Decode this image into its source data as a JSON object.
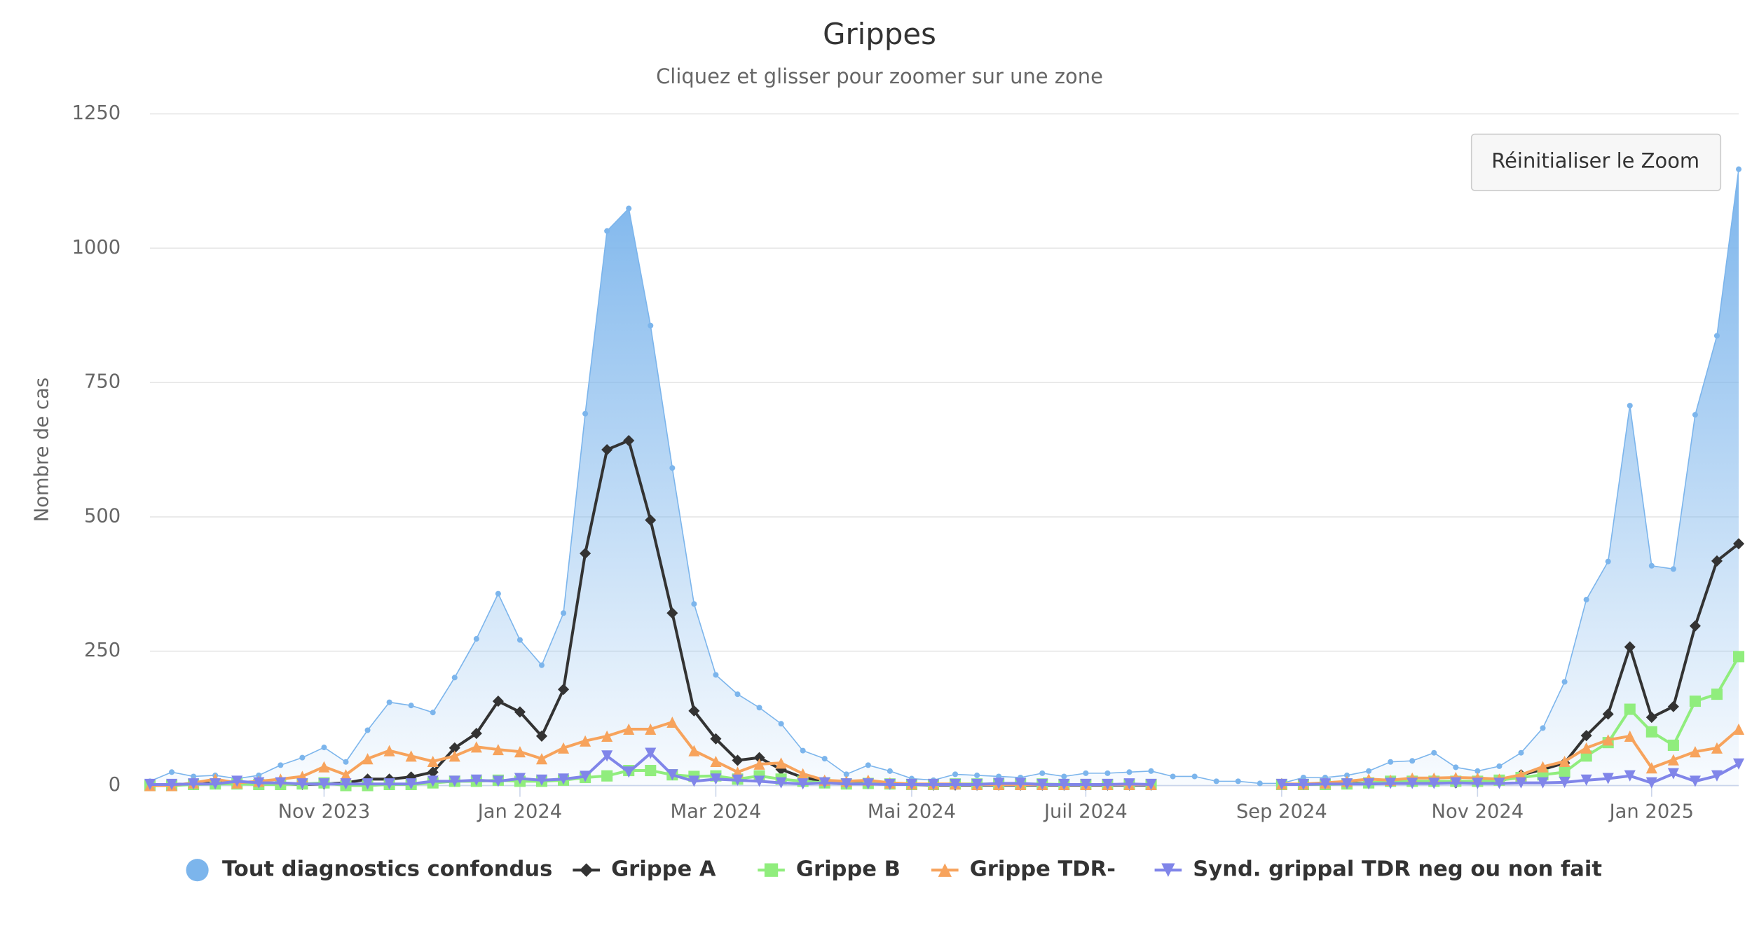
{
  "chart_data": {
    "type": "line",
    "title": "Grippes",
    "subtitle": "Cliquez et glisser pour zoomer sur une zone",
    "y_label": "Nombre de cas",
    "button": "Réinitialiser le Zoom",
    "categories": [
      null,
      null,
      null,
      null,
      null,
      null,
      null,
      null,
      "Nov 2023",
      null,
      null,
      null,
      null,
      null,
      null,
      null,
      null,
      "Jan 2024",
      null,
      null,
      null,
      null,
      null,
      null,
      null,
      null,
      "Mar 2024",
      null,
      null,
      null,
      null,
      null,
      null,
      null,
      null,
      "Mai 2024",
      null,
      null,
      null,
      null,
      null,
      null,
      null,
      "Juil 2024",
      null,
      null,
      null,
      null,
      null,
      null,
      null,
      null,
      "Sep 2024",
      null,
      null,
      null,
      null,
      null,
      null,
      null,
      null,
      "Nov 2024",
      null,
      null,
      null,
      null,
      null,
      null,
      null,
      "Jan 2025",
      null,
      null,
      null,
      null
    ],
    "ylim": [
      0,
      1250
    ],
    "yticks": [
      0,
      250,
      500,
      750,
      1000,
      1250
    ],
    "grid": true,
    "series": [
      {
        "name": "Tout diagnostics confondus",
        "color": "#7cb5ec",
        "marker": "circle",
        "area": true,
        "values": [
          8,
          25,
          17,
          19,
          13,
          19,
          38,
          52,
          71,
          44,
          103,
          155,
          149,
          136,
          201,
          273,
          357,
          271,
          224,
          321,
          692,
          1032,
          1074,
          856,
          591,
          338,
          206,
          170,
          145,
          115,
          65,
          50,
          21,
          38,
          27,
          13,
          10,
          21,
          19,
          17,
          15,
          23,
          17,
          23,
          23,
          25,
          27,
          17,
          17,
          8,
          8,
          4,
          4,
          15,
          15,
          19,
          27,
          44,
          46,
          61,
          34,
          27,
          36,
          61,
          107,
          193,
          346,
          417,
          707,
          409,
          403,
          690,
          837,
          1147
        ]
      },
      {
        "name": "Grippe A",
        "color": "#333333",
        "marker": "diamond",
        "values": [
          2,
          2,
          3,
          5,
          5,
          3,
          3,
          2,
          3,
          5,
          12,
          12,
          16,
          25,
          70,
          97,
          157,
          137,
          92,
          179,
          432,
          625,
          642,
          494,
          321,
          139,
          87,
          47,
          52,
          30,
          15,
          8,
          4,
          6,
          3,
          2,
          1,
          1,
          1,
          1,
          1,
          1,
          1,
          1,
          1,
          1,
          1,
          null,
          null,
          null,
          null,
          null,
          3,
          2,
          3,
          4,
          5,
          6,
          8,
          8,
          5,
          6,
          8,
          20,
          30,
          42,
          93,
          133,
          258,
          127,
          147,
          297,
          418,
          450
        ]
      },
      {
        "name": "Grippe B",
        "color": "#90ed7d",
        "marker": "square",
        "values": [
          0,
          0,
          2,
          3,
          3,
          2,
          2,
          3,
          5,
          0,
          0,
          2,
          2,
          5,
          8,
          8,
          10,
          8,
          8,
          10,
          15,
          18,
          28,
          28,
          20,
          17,
          18,
          12,
          18,
          12,
          8,
          5,
          3,
          4,
          3,
          2,
          2,
          3,
          3,
          3,
          3,
          3,
          2,
          2,
          2,
          2,
          2,
          null,
          null,
          null,
          null,
          null,
          2,
          2,
          2,
          3,
          5,
          8,
          8,
          8,
          8,
          8,
          10,
          15,
          20,
          25,
          55,
          80,
          142,
          100,
          75,
          157,
          170,
          240
        ]
      },
      {
        "name": "Grippe TDR-",
        "color": "#f7a35c",
        "marker": "triangle",
        "values": [
          0,
          0,
          5,
          12,
          5,
          8,
          12,
          17,
          35,
          20,
          50,
          65,
          55,
          45,
          55,
          72,
          67,
          63,
          50,
          70,
          83,
          92,
          105,
          105,
          118,
          65,
          45,
          25,
          40,
          42,
          22,
          10,
          8,
          10,
          5,
          3,
          3,
          3,
          2,
          2,
          2,
          2,
          2,
          2,
          2,
          2,
          2,
          null,
          null,
          null,
          null,
          null,
          3,
          3,
          5,
          8,
          12,
          10,
          14,
          14,
          15,
          14,
          12,
          20,
          35,
          45,
          70,
          85,
          92,
          33,
          48,
          63,
          70,
          105
        ]
      },
      {
        "name": "Synd. grippal TDR neg ou non fait",
        "color": "#8085e9",
        "marker": "triangle-down",
        "values": [
          2,
          2,
          3,
          3,
          8,
          5,
          5,
          3,
          3,
          3,
          3,
          3,
          3,
          8,
          8,
          10,
          8,
          13,
          10,
          12,
          17,
          55,
          25,
          60,
          20,
          8,
          12,
          10,
          8,
          5,
          3,
          5,
          3,
          3,
          2,
          2,
          2,
          2,
          2,
          4,
          4,
          2,
          2,
          2,
          2,
          3,
          2,
          null,
          null,
          null,
          null,
          null,
          2,
          2,
          3,
          3,
          3,
          4,
          4,
          4,
          5,
          4,
          4,
          5,
          5,
          6,
          10,
          13,
          18,
          5,
          22,
          8,
          18,
          40
        ]
      }
    ]
  }
}
